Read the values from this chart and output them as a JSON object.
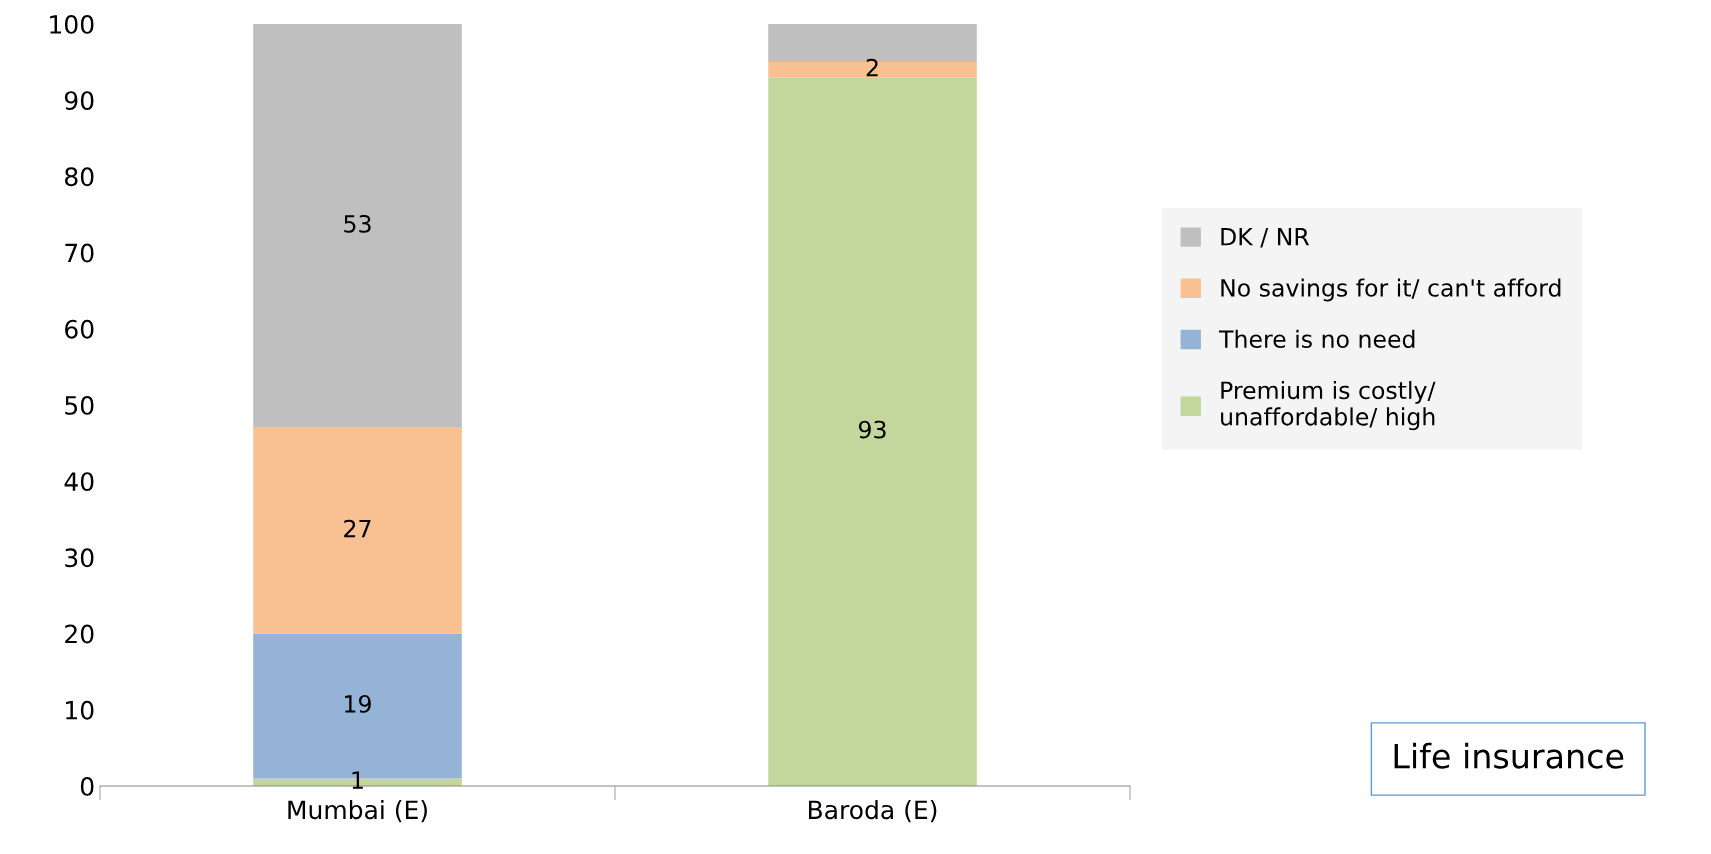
{
  "chart_data": {
    "type": "bar",
    "title": "Life insurance",
    "stacked": true,
    "categories": [
      "Mumbai (E)",
      "Baroda (E)"
    ],
    "series": [
      {
        "name": "Premium is costly/\nunaffordable/ high",
        "color": "#c3d69b",
        "values": [
          1,
          93
        ],
        "value_labels": [
          "1",
          "93"
        ]
      },
      {
        "name": "There is no need",
        "color": "#95b3d7",
        "values": [
          19,
          0
        ],
        "value_labels": [
          "19",
          null
        ]
      },
      {
        "name": "No savings for it/ can't afford",
        "color": "#f9c191",
        "values": [
          27,
          2
        ],
        "value_labels": [
          "27",
          "2"
        ]
      },
      {
        "name": "DK / NR",
        "color": "#bfbfbf",
        "values": [
          53,
          5
        ],
        "value_labels": [
          "53",
          null
        ]
      }
    ],
    "ylim": [
      0,
      100
    ],
    "yticks": [
      0,
      10,
      20,
      30,
      40,
      50,
      60,
      70,
      80,
      90,
      100
    ],
    "grid": false,
    "legend": "right"
  }
}
